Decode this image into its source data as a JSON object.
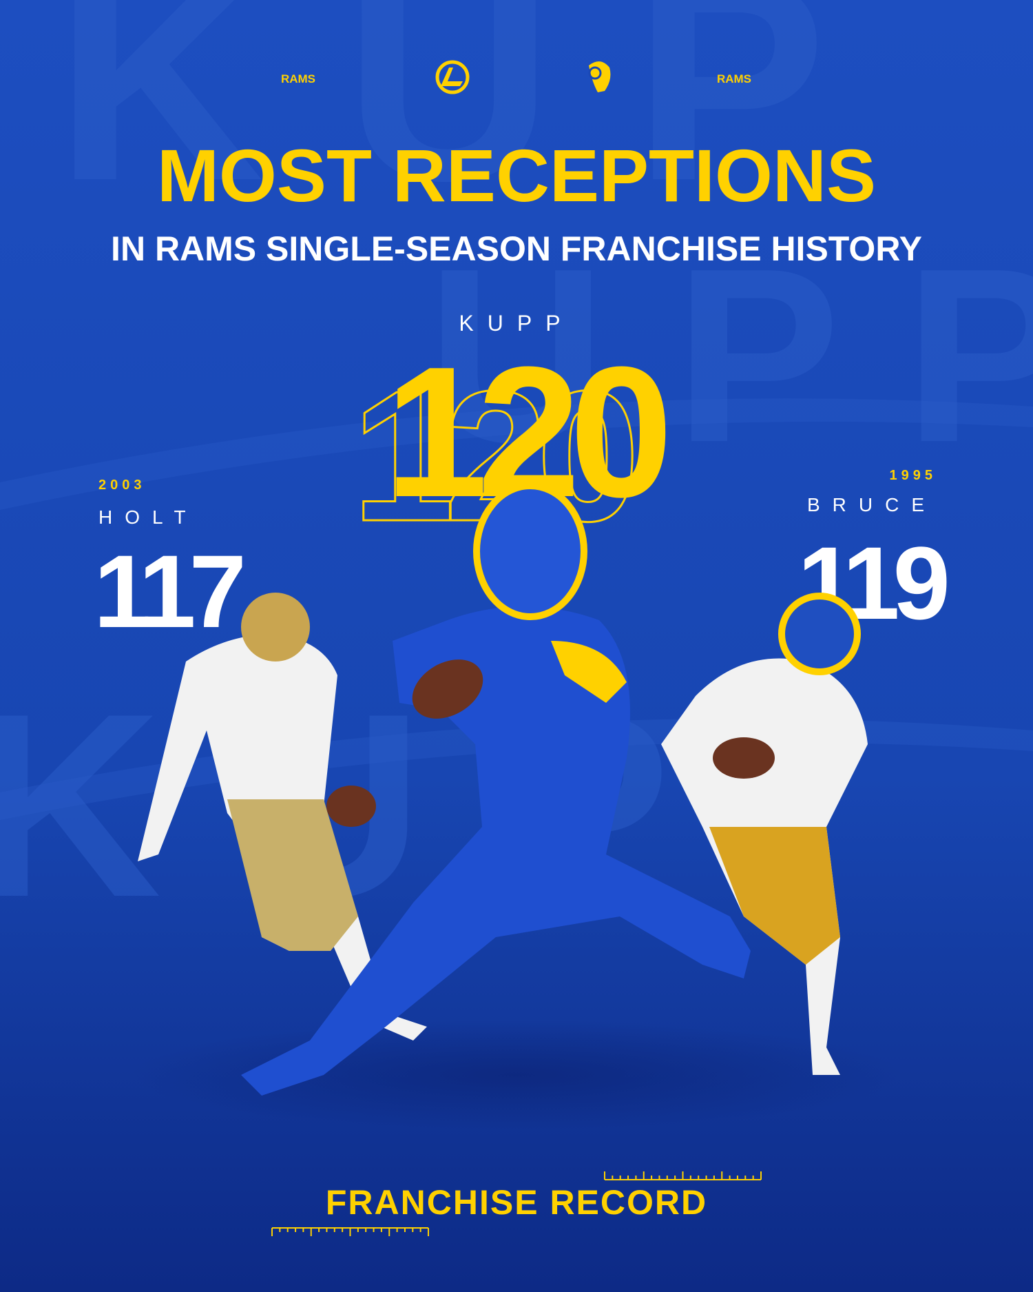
{
  "header": {
    "left_text": "RAMS",
    "right_text": "RAMS"
  },
  "title": "MOST RECEPTIONS",
  "subtitle": "IN RAMS SINGLE-SEASON FRANCHISE HISTORY",
  "players": [
    {
      "name": "KUPP",
      "receptions": 120
    },
    {
      "name": "HOLT",
      "year": 2003,
      "receptions": 117
    },
    {
      "name": "BRUCE",
      "year": 1995,
      "receptions": 119
    }
  ],
  "footer": "FRANCHISE RECORD"
}
